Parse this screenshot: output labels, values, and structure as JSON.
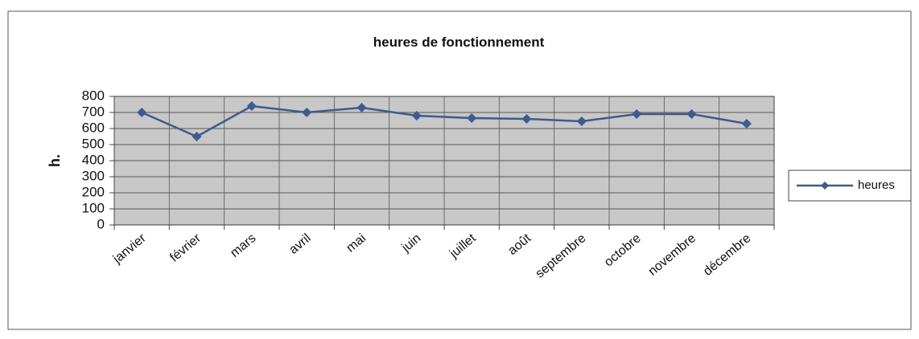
{
  "chart_data": {
    "type": "line",
    "title": "heures de fonctionnement",
    "y_label": "h.",
    "categories": [
      "janvier",
      "février",
      "mars",
      "avril",
      "mai",
      "juin",
      "juillet",
      "août",
      "septembre",
      "octobre",
      "novembre",
      "décembre"
    ],
    "series": [
      {
        "name": "heures",
        "color": "#3f5a8c",
        "values": [
          700,
          550,
          740,
          700,
          730,
          680,
          665,
          660,
          645,
          690,
          690,
          630
        ]
      }
    ],
    "ylim": [
      0,
      800
    ],
    "yticks": [
      0,
      100,
      200,
      300,
      400,
      500,
      600,
      700,
      800
    ],
    "grid": true,
    "legend": "right"
  }
}
